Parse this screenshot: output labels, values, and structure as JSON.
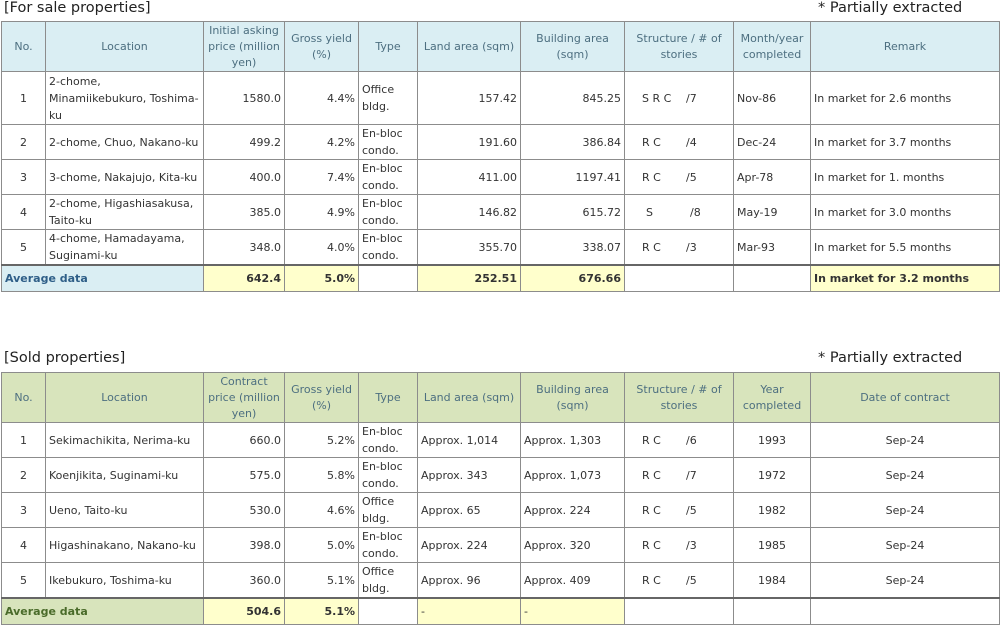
{
  "sale": {
    "title": "[For sale properties]",
    "note": "* Partially extracted",
    "headers": [
      "No.",
      "Location",
      "Initial asking price (million yen)",
      "Gross yield (%)",
      "Type",
      "Land area (sqm)",
      "Building area (sqm)",
      "Structure / # of stories",
      "Month/year completed",
      "Remark"
    ],
    "rows": [
      {
        "no": "1",
        "location": "2-chome, Minamiikebukuro, Toshima-ku",
        "price": "1580.0",
        "yield": "4.4%",
        "type": "Office bldg.",
        "land": "157.42",
        "building": "845.25",
        "structure": "S R C",
        "stories": "/7",
        "completed": "Nov-86",
        "remark": "In market for 2.6 months"
      },
      {
        "no": "2",
        "location": "2-chome, Chuo, Nakano-ku",
        "price": "499.2",
        "yield": "4.2%",
        "type": "En-bloc condo.",
        "land": "191.60",
        "building": "386.84",
        "structure": "R C",
        "stories": "/4",
        "completed": "Dec-24",
        "remark": "In market for 3.7 months"
      },
      {
        "no": "3",
        "location": "3-chome, Nakajujo, Kita-ku",
        "price": "400.0",
        "yield": "7.4%",
        "type": "En-bloc condo.",
        "land": "411.00",
        "building": "1197.41",
        "structure": "R C",
        "stories": "/5",
        "completed": "Apr-78",
        "remark": "In market for 1. months"
      },
      {
        "no": "4",
        "location": "2-chome, Higashiasakusa, Taito-ku",
        "price": "385.0",
        "yield": "4.9%",
        "type": "En-bloc condo.",
        "land": "146.82",
        "building": "615.72",
        "structure": "S",
        "stories": "/8",
        "completed": "May-19",
        "remark": "In market for 3.0 months"
      },
      {
        "no": "5",
        "location": "4-chome, Hamadayama, Suginami-ku",
        "price": "348.0",
        "yield": "4.0%",
        "type": "En-bloc condo.",
        "land": "355.70",
        "building": "338.07",
        "structure": "R C",
        "stories": "/3",
        "completed": "Mar-93",
        "remark": "In market for 5.5 months"
      }
    ],
    "average": {
      "label": "Average data",
      "price": "642.4",
      "yield": "5.0%",
      "land": "252.51",
      "building": "676.66",
      "remark": "In market for 3.2 months"
    }
  },
  "sold": {
    "title": "[Sold properties]",
    "note": "* Partially extracted",
    "headers": [
      "No.",
      "Location",
      "Contract price (million yen)",
      "Gross yield (%)",
      "Type",
      "Land area (sqm)",
      "Building area (sqm)",
      "Structure / # of stories",
      "Year completed",
      "Date of contract"
    ],
    "rows": [
      {
        "no": "1",
        "location": "Sekimachikita, Nerima-ku",
        "price": "660.0",
        "yield": "5.2%",
        "type": "En-bloc condo.",
        "land": "Approx. 1,014",
        "building": "Approx. 1,303",
        "structure": "R C",
        "stories": "/6",
        "year": "1993",
        "date": "Sep-24"
      },
      {
        "no": "2",
        "location": "Koenjikita, Suginami-ku",
        "price": "575.0",
        "yield": "5.8%",
        "type": "En-bloc condo.",
        "land": "Approx. 343",
        "building": "Approx. 1,073",
        "structure": "R C",
        "stories": "/7",
        "year": "1972",
        "date": "Sep-24"
      },
      {
        "no": "3",
        "location": "Ueno, Taito-ku",
        "price": "530.0",
        "yield": "4.6%",
        "type": "Office bldg.",
        "land": "Approx. 65",
        "building": "Approx. 224",
        "structure": "R C",
        "stories": "/5",
        "year": "1982",
        "date": "Sep-24"
      },
      {
        "no": "4",
        "location": "Higashinakano, Nakano-ku",
        "price": "398.0",
        "yield": "5.0%",
        "type": "En-bloc condo.",
        "land": "Approx. 224",
        "building": "Approx. 320",
        "structure": "R C",
        "stories": "/3",
        "year": "1985",
        "date": "Sep-24"
      },
      {
        "no": "5",
        "location": "Ikebukuro, Toshima-ku",
        "price": "360.0",
        "yield": "5.1%",
        "type": "Office bldg.",
        "land": "Approx. 96",
        "building": "Approx. 409",
        "structure": "R C",
        "stories": "/5",
        "year": "1984",
        "date": "Sep-24"
      }
    ],
    "average": {
      "label": "Average data",
      "price": "504.6",
      "yield": "5.1%",
      "land": "-",
      "building": "-"
    }
  }
}
